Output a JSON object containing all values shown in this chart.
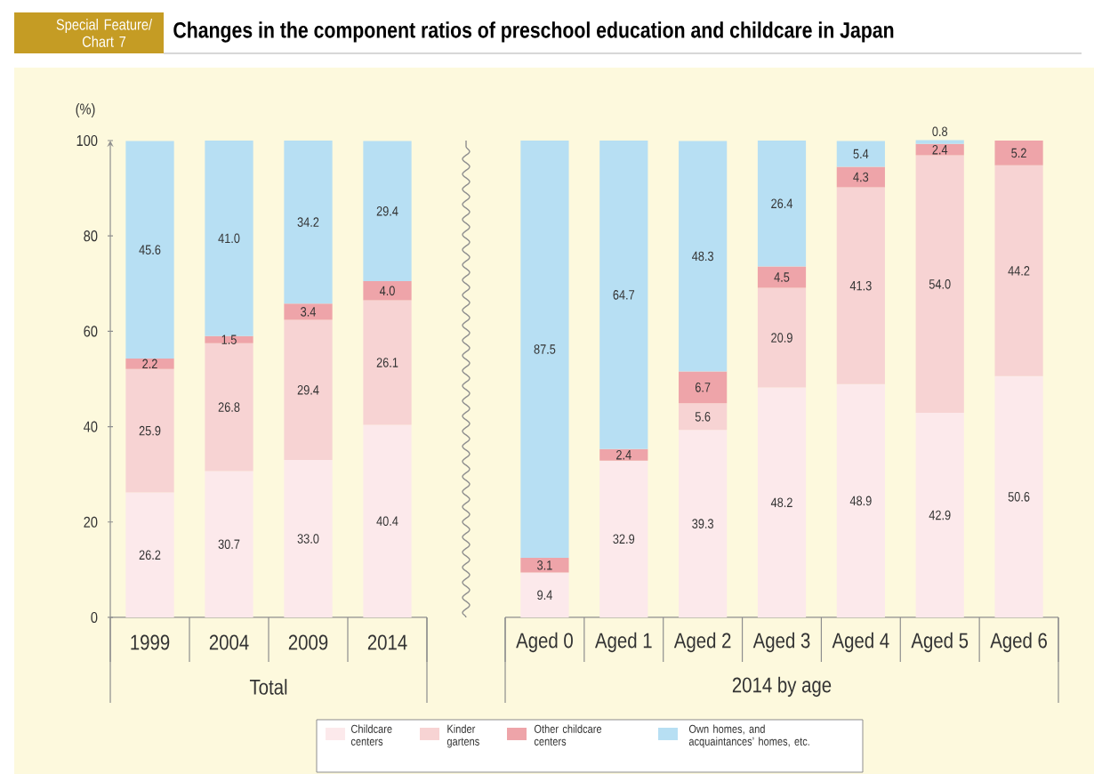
{
  "chart_data": [
    {
      "type": "bar",
      "title": "Changes in the component ratios of preschool education and childcare in Japan",
      "annotations": [
        "Special Feature/ Chart 7"
      ],
      "xlabel": "Total",
      "ylabel": "(%)",
      "stacked": true,
      "legend": "bottom",
      "categories": [
        "1999",
        "2004",
        "2009",
        "2014"
      ],
      "ylim": [
        0,
        100
      ],
      "yticks": [
        0,
        20,
        40,
        60,
        80,
        100
      ],
      "series": [
        {
          "name": "Childcare centers",
          "color": "#fce9eb",
          "values": [
            26.2,
            30.7,
            33.0,
            40.4
          ],
          "value_labels": [
            "26.2",
            "30.7",
            "33.0",
            "40.4"
          ]
        },
        {
          "name": "Kinder gartens",
          "color": "#f7d3d3",
          "values": [
            25.9,
            26.8,
            29.4,
            26.1
          ],
          "value_labels": [
            "25.9",
            "26.8",
            "29.4",
            "26.1"
          ]
        },
        {
          "name": "Other childcare centers",
          "color": "#eea4a9",
          "values": [
            2.2,
            1.5,
            3.4,
            4.0
          ],
          "value_labels": [
            "2.2",
            "1.5",
            "3.4",
            "4.0"
          ]
        },
        {
          "name": "Own homes, and acquaintances’ homes, etc.",
          "color": "#b7dff3",
          "values": [
            45.6,
            41.0,
            34.2,
            29.4
          ],
          "value_labels": [
            "45.6",
            "41.0",
            "34.2",
            "29.4"
          ]
        }
      ]
    },
    {
      "type": "bar",
      "xlabel": "2014 by age",
      "stacked": true,
      "tick_labels": "x",
      "categories": [
        "Aged 0",
        "Aged 1",
        "Aged 2",
        "Aged 3",
        "Aged 4",
        "Aged 5",
        "Aged 6"
      ],
      "ylim": [
        0,
        100
      ],
      "series": [
        {
          "color": "#fce9eb",
          "values": [
            9.4,
            32.9,
            39.3,
            48.2,
            48.9,
            42.9,
            50.6
          ],
          "value_labels": [
            "9.4",
            "32.9",
            "39.3",
            "48.2",
            "48.9",
            "42.9",
            "50.6"
          ]
        },
        {
          "color": "#f7d3d3",
          "values": [
            null,
            null,
            5.6,
            20.9,
            41.3,
            54.0,
            44.2
          ],
          "value_labels": [
            null,
            null,
            "5.6",
            "20.9",
            "41.3",
            "54.0",
            "44.2"
          ]
        },
        {
          "color": "#eea4a9",
          "values": [
            3.1,
            2.4,
            6.7,
            4.5,
            4.3,
            2.4,
            5.2
          ],
          "value_labels": [
            "3.1",
            "2.4",
            "6.7",
            "4.5",
            "4.3",
            "2.4",
            "5.2"
          ]
        },
        {
          "color": "#b7dff3",
          "values": [
            87.5,
            64.7,
            48.3,
            26.4,
            5.4,
            0.8,
            null
          ],
          "value_labels": [
            "87.5",
            "64.7",
            "48.3",
            "26.4",
            "5.4",
            "0.8",
            null
          ]
        }
      ]
    }
  ]
}
